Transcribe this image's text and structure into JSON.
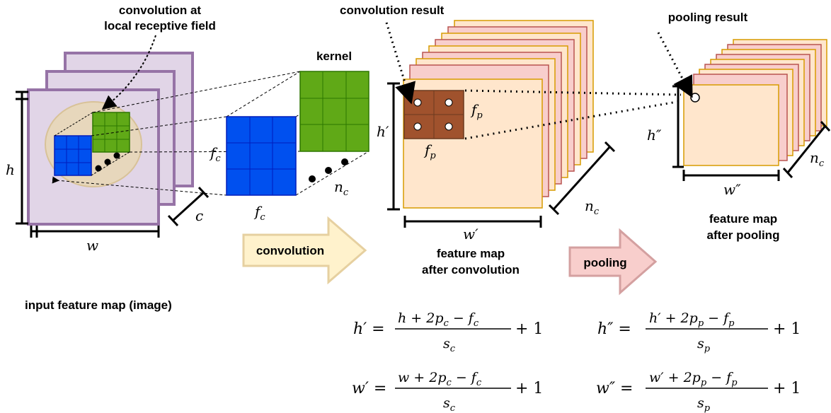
{
  "labels": {
    "conv_local_1": "convolution at",
    "conv_local_2": "local receptive field",
    "kernel": "kernel",
    "conv_result": "convolution result",
    "pool_result": "pooling result",
    "input_map": "input feature map (image)",
    "fmap_conv_1": "feature map",
    "fmap_conv_2": "after convolution",
    "fmap_pool_1": "feature map",
    "fmap_pool_2": "after pooling"
  },
  "arrows": {
    "convolution": "convolution",
    "pooling": "pooling"
  },
  "symbols": {
    "h": "h",
    "w": "w",
    "c": "c",
    "f": "f",
    "c_sub": "c",
    "p_sub": "p",
    "n": "n",
    "h_prime": "h′",
    "w_prime": "w′",
    "h_dprime": "h″",
    "w_dprime": "w″"
  },
  "equations": {
    "conv_h_lhs": "h′ =",
    "conv_h_num": "h + 2p",
    "conv_h_num2": " − f",
    "conv_h_den": "s",
    "conv_h_tail": "+ 1",
    "conv_w_lhs": "w′ =",
    "conv_w_num": "w + 2p",
    "conv_w_num2": " − f",
    "conv_w_den": "s",
    "conv_w_tail": "+ 1",
    "pool_h_lhs": "h″ =",
    "pool_h_num": "h′ + 2p",
    "pool_h_num2": " − f",
    "pool_h_den": "s",
    "pool_h_tail": "+ 1",
    "pool_w_lhs": "w″ =",
    "pool_w_num": "w′ + 2p",
    "pool_w_num2": " − f",
    "pool_w_den": "s",
    "pool_w_tail": "+ 1"
  },
  "colors": {
    "input_fill": "#e1d5e7",
    "input_stroke": "#9673a6",
    "kernel_blue": "#0050ef",
    "kernel_green": "#60a917",
    "fmap_fill": "#ffe6cc",
    "fmap_fill2": "#f8cecc",
    "fmap_stroke": "#d79b00",
    "pool_patch": "#a0522d",
    "conv_arrow_fill": "#fff2cc",
    "conv_arrow_stroke": "#e6d0a0",
    "pool_arrow_fill": "#f8cecc",
    "pool_arrow_stroke": "#d4a0a0"
  }
}
